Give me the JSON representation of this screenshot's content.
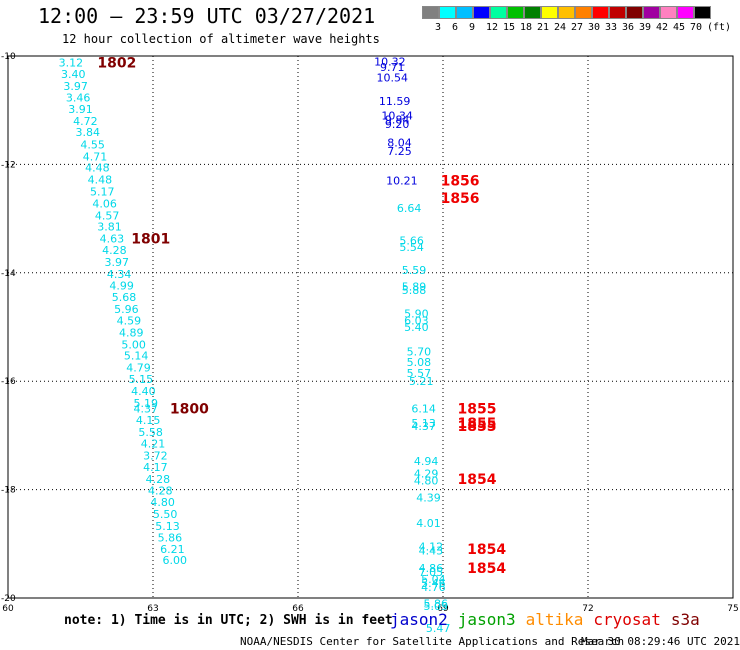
{
  "title": "12:00 – 23:59 UTC 03/27/2021",
  "subtitle": "12 hour collection of altimeter wave heights",
  "scale": {
    "colors": [
      "#808080",
      "#00ffff",
      "#00bfff",
      "#0000ff",
      "#00ffa0",
      "#00c000",
      "#008000",
      "#ffff00",
      "#ffbf00",
      "#ff8000",
      "#ff0000",
      "#c00000",
      "#800000",
      "#a000a0",
      "#ff80c0",
      "#ff00ff",
      "#000000"
    ],
    "labels": [
      "3",
      "6",
      "9",
      "12",
      "15",
      "18",
      "21",
      "24",
      "27",
      "30",
      "33",
      "36",
      "39",
      "42",
      "45",
      "70",
      "(ft)"
    ]
  },
  "note": "note: 1) Time is in UTC; 2) SWH is in feet",
  "legend": [
    {
      "name": "jason2",
      "color": "#0000cc"
    },
    {
      "name": "jason3",
      "color": "#00a000"
    },
    {
      "name": "altika",
      "color": "#ff8c00"
    },
    {
      "name": "cryosat",
      "color": "#dd0000"
    },
    {
      "name": "s3a",
      "color": "#800000"
    }
  ],
  "credit": "NOAA/NESDIS Center for Satellite Applications and Research",
  "credit_time": "Mar 30 08:29:46 UTC 2021",
  "chart_data": {
    "type": "scatter",
    "xlim": [
      60,
      75
    ],
    "ylim": [
      -20,
      -10
    ],
    "x_ticks": [
      60,
      63,
      66,
      69,
      72,
      75
    ],
    "y_ticks": [
      -10,
      -12,
      -14,
      -16,
      -18,
      -20
    ],
    "grid": true,
    "series": [
      {
        "color": "#00d8e8",
        "points": [
          {
            "x": 61.3,
            "y": -10.12,
            "v": "3.12"
          },
          {
            "x": 61.35,
            "y": -10.33,
            "v": "3.40"
          },
          {
            "x": 61.4,
            "y": -10.55,
            "v": "3.97"
          },
          {
            "x": 61.45,
            "y": -10.77,
            "v": "3.46"
          },
          {
            "x": 61.5,
            "y": -10.98,
            "v": "3.91"
          },
          {
            "x": 61.6,
            "y": -11.2,
            "v": "4.72"
          },
          {
            "x": 61.65,
            "y": -11.4,
            "v": "3.84"
          },
          {
            "x": 61.75,
            "y": -11.63,
            "v": "4.55"
          },
          {
            "x": 61.8,
            "y": -11.85,
            "v": "4.71"
          },
          {
            "x": 61.85,
            "y": -12.06,
            "v": "4.48"
          },
          {
            "x": 61.9,
            "y": -12.28,
            "v": "4.48"
          },
          {
            "x": 61.95,
            "y": -12.5,
            "v": "5.17"
          },
          {
            "x": 62.0,
            "y": -12.72,
            "v": "4.06"
          },
          {
            "x": 62.05,
            "y": -12.94,
            "v": "4.57"
          },
          {
            "x": 62.1,
            "y": -13.15,
            "v": "3.81"
          },
          {
            "x": 62.15,
            "y": -13.37,
            "v": "4.63"
          },
          {
            "x": 62.2,
            "y": -13.58,
            "v": "4.28"
          },
          {
            "x": 62.25,
            "y": -13.8,
            "v": "3.97"
          },
          {
            "x": 62.3,
            "y": -14.02,
            "v": "4.34"
          },
          {
            "x": 62.35,
            "y": -14.23,
            "v": "4.99"
          },
          {
            "x": 62.4,
            "y": -14.45,
            "v": "5.68"
          },
          {
            "x": 62.45,
            "y": -14.67,
            "v": "5.96"
          },
          {
            "x": 62.5,
            "y": -14.88,
            "v": "4.59"
          },
          {
            "x": 62.55,
            "y": -15.1,
            "v": "4.89"
          },
          {
            "x": 62.6,
            "y": -15.32,
            "v": "5.00"
          },
          {
            "x": 62.65,
            "y": -15.53,
            "v": "5.14"
          },
          {
            "x": 62.7,
            "y": -15.75,
            "v": "4.79"
          },
          {
            "x": 62.75,
            "y": -15.96,
            "v": "5.15"
          },
          {
            "x": 62.8,
            "y": -16.18,
            "v": "4.40"
          },
          {
            "x": 62.85,
            "y": -16.4,
            "v": "5.19"
          },
          {
            "x": 62.85,
            "y": -16.5,
            "v": "4.37"
          },
          {
            "x": 62.9,
            "y": -16.72,
            "v": "4.15"
          },
          {
            "x": 62.95,
            "y": -16.94,
            "v": "5.58"
          },
          {
            "x": 63.0,
            "y": -17.15,
            "v": "4.21"
          },
          {
            "x": 63.05,
            "y": -17.37,
            "v": "3.72"
          },
          {
            "x": 63.05,
            "y": -17.58,
            "v": "4.17"
          },
          {
            "x": 63.1,
            "y": -17.8,
            "v": "4.28"
          },
          {
            "x": 63.15,
            "y": -18.02,
            "v": "4.28"
          },
          {
            "x": 63.2,
            "y": -18.23,
            "v": "4.80"
          },
          {
            "x": 63.25,
            "y": -18.45,
            "v": "5.50"
          },
          {
            "x": 63.3,
            "y": -18.67,
            "v": "5.13"
          },
          {
            "x": 63.35,
            "y": -18.88,
            "v": "5.86"
          },
          {
            "x": 63.4,
            "y": -19.1,
            "v": "6.21"
          },
          {
            "x": 63.45,
            "y": -19.3,
            "v": "6.00"
          },
          {
            "x": 68.3,
            "y": -12.8,
            "v": "6.64"
          },
          {
            "x": 68.35,
            "y": -13.4,
            "v": "5.66"
          },
          {
            "x": 68.35,
            "y": -13.52,
            "v": "5.54"
          },
          {
            "x": 68.4,
            "y": -13.95,
            "v": "5.59"
          },
          {
            "x": 68.4,
            "y": -14.25,
            "v": "5.89"
          },
          {
            "x": 68.4,
            "y": -14.32,
            "v": "5.88"
          },
          {
            "x": 68.45,
            "y": -14.75,
            "v": "5.90"
          },
          {
            "x": 68.45,
            "y": -14.88,
            "v": "6.03"
          },
          {
            "x": 68.45,
            "y": -15.0,
            "v": "5.40"
          },
          {
            "x": 68.5,
            "y": -15.45,
            "v": "5.70"
          },
          {
            "x": 68.5,
            "y": -15.65,
            "v": "5.08"
          },
          {
            "x": 68.5,
            "y": -15.85,
            "v": "5.57"
          },
          {
            "x": 68.55,
            "y": -16.0,
            "v": "5.21"
          },
          {
            "x": 68.6,
            "y": -16.5,
            "v": "6.14"
          },
          {
            "x": 68.6,
            "y": -16.77,
            "v": "5.13"
          },
          {
            "x": 68.6,
            "y": -16.83,
            "v": "4.37"
          },
          {
            "x": 68.65,
            "y": -17.47,
            "v": "4.94"
          },
          {
            "x": 68.65,
            "y": -17.7,
            "v": "4.29"
          },
          {
            "x": 68.65,
            "y": -17.83,
            "v": "4.80"
          },
          {
            "x": 68.7,
            "y": -18.15,
            "v": "4.39"
          },
          {
            "x": 68.7,
            "y": -18.62,
            "v": "4.01"
          },
          {
            "x": 68.75,
            "y": -19.05,
            "v": "4.12"
          },
          {
            "x": 68.75,
            "y": -19.12,
            "v": "4.43"
          },
          {
            "x": 68.75,
            "y": -19.45,
            "v": "4.86"
          },
          {
            "x": 68.75,
            "y": -19.52,
            "v": "7.05"
          },
          {
            "x": 68.8,
            "y": -19.65,
            "v": "5.04"
          },
          {
            "x": 68.8,
            "y": -19.72,
            "v": "5.46"
          },
          {
            "x": 68.8,
            "y": -19.8,
            "v": "4.76"
          },
          {
            "x": 68.85,
            "y": -20.1,
            "v": "5.86"
          },
          {
            "x": 68.85,
            "y": -20.15,
            "v": "5.05"
          },
          {
            "x": 68.9,
            "y": -20.55,
            "v": "5.47"
          }
        ]
      },
      {
        "color": "#0000dd",
        "points": [
          {
            "x": 67.9,
            "y": -10.1,
            "v": "10.32"
          },
          {
            "x": 67.95,
            "y": -10.2,
            "v": "9.71"
          },
          {
            "x": 67.95,
            "y": -10.4,
            "v": "10.54"
          },
          {
            "x": 68.0,
            "y": -10.83,
            "v": "11.59"
          },
          {
            "x": 68.05,
            "y": -11.1,
            "v": "10.34"
          },
          {
            "x": 68.05,
            "y": -11.17,
            "v": "9.84"
          },
          {
            "x": 68.05,
            "y": -11.25,
            "v": "9.20"
          },
          {
            "x": 68.1,
            "y": -11.6,
            "v": "8.04"
          },
          {
            "x": 68.1,
            "y": -11.75,
            "v": "7.25"
          },
          {
            "x": 68.15,
            "y": -12.3,
            "v": "10.21"
          }
        ]
      }
    ],
    "pass_labels": [
      {
        "x": 61.85,
        "y": -10.12,
        "text": "1802",
        "color": "#800000"
      },
      {
        "x": 62.55,
        "y": -13.37,
        "text": "1801",
        "color": "#800000"
      },
      {
        "x": 63.35,
        "y": -16.5,
        "text": "1800",
        "color": "#800000"
      },
      {
        "x": 68.95,
        "y": -12.3,
        "text": "1856",
        "color": "#ee0000"
      },
      {
        "x": 68.95,
        "y": -12.62,
        "text": "1856",
        "color": "#ee0000"
      },
      {
        "x": 69.3,
        "y": -16.5,
        "text": "1855",
        "color": "#ee0000"
      },
      {
        "x": 69.3,
        "y": -16.77,
        "text": "1855",
        "color": "#ee0000"
      },
      {
        "x": 69.3,
        "y": -16.83,
        "text": "1855",
        "color": "#ee0000"
      },
      {
        "x": 69.3,
        "y": -17.8,
        "text": "1854",
        "color": "#ee0000"
      },
      {
        "x": 69.5,
        "y": -19.1,
        "text": "1854",
        "color": "#ee0000"
      },
      {
        "x": 69.5,
        "y": -19.45,
        "text": "1854",
        "color": "#ee0000"
      }
    ]
  }
}
